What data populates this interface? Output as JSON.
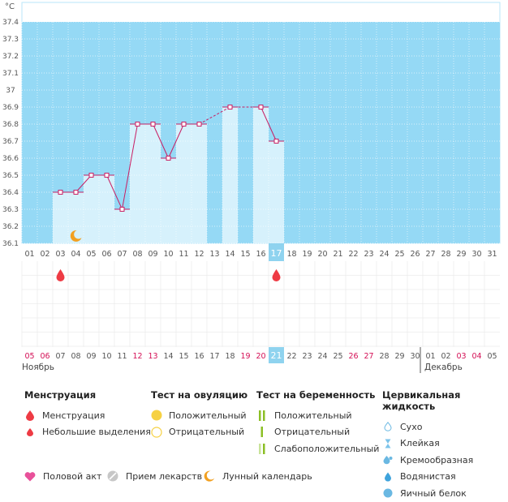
{
  "chart_data": {
    "type": "line",
    "ylabel": "°C",
    "ylim": [
      36.1,
      37.4
    ],
    "y_ticks": [
      "36.1",
      "36.2",
      "36.3",
      "36.4",
      "36.5",
      "36.6",
      "36.7",
      "36.8",
      "36.9",
      "37",
      "37.1",
      "37.2",
      "37.3",
      "37.4"
    ],
    "cycle_days": [
      "01",
      "02",
      "03",
      "04",
      "05",
      "06",
      "07",
      "08",
      "09",
      "10",
      "11",
      "12",
      "13",
      "14",
      "15",
      "16",
      "17",
      "18",
      "19",
      "20",
      "21",
      "22",
      "23",
      "24",
      "25",
      "26",
      "27",
      "28",
      "29",
      "30",
      "31"
    ],
    "highlight_day": "17",
    "bbt": [
      {
        "day": 3,
        "value": 36.4
      },
      {
        "day": 4,
        "value": 36.4
      },
      {
        "day": 5,
        "value": 36.5
      },
      {
        "day": 6,
        "value": 36.5
      },
      {
        "day": 7,
        "value": 36.3
      },
      {
        "day": 8,
        "value": 36.8
      },
      {
        "day": 9,
        "value": 36.8
      },
      {
        "day": 10,
        "value": 36.6
      },
      {
        "day": 11,
        "value": 36.8
      },
      {
        "day": 12,
        "value": 36.8
      },
      {
        "day": 14,
        "value": 36.9
      },
      {
        "day": 16,
        "value": 36.9
      },
      {
        "day": 17,
        "value": 36.7
      }
    ],
    "bbt_dashed_segments": [
      [
        12,
        14
      ],
      [
        14,
        16
      ]
    ],
    "moon_day": 4,
    "menstruation_days": [
      3,
      17
    ],
    "calendar_dates": [
      {
        "label": "05",
        "red": true
      },
      {
        "label": "06",
        "red": true
      },
      {
        "label": "07",
        "red": false
      },
      {
        "label": "08",
        "red": false
      },
      {
        "label": "09",
        "red": false
      },
      {
        "label": "10",
        "red": false
      },
      {
        "label": "11",
        "red": false
      },
      {
        "label": "12",
        "red": true
      },
      {
        "label": "13",
        "red": true
      },
      {
        "label": "14",
        "red": false
      },
      {
        "label": "15",
        "red": false
      },
      {
        "label": "16",
        "red": false
      },
      {
        "label": "17",
        "red": false
      },
      {
        "label": "18",
        "red": false
      },
      {
        "label": "19",
        "red": true
      },
      {
        "label": "20",
        "red": true
      },
      {
        "label": "21",
        "red": false,
        "highlight": true
      },
      {
        "label": "22",
        "red": false
      },
      {
        "label": "23",
        "red": false
      },
      {
        "label": "24",
        "red": false
      },
      {
        "label": "25",
        "red": false
      },
      {
        "label": "26",
        "red": true
      },
      {
        "label": "27",
        "red": true
      },
      {
        "label": "28",
        "red": false
      },
      {
        "label": "29",
        "red": false
      },
      {
        "label": "30",
        "red": false
      },
      {
        "label": "01",
        "red": false
      },
      {
        "label": "02",
        "red": false
      },
      {
        "label": "03",
        "red": true
      },
      {
        "label": "04",
        "red": true
      },
      {
        "label": "05",
        "red": false
      }
    ],
    "month_labels": [
      "Ноябрь",
      "Декабрь"
    ],
    "colors": {
      "plot_bg": "#95d9f5",
      "column": "#d6f1fc",
      "line": "#c81e63",
      "highlight": "#8fd3ef",
      "red_date": "#d40f55",
      "grid": "#ffffff",
      "lower_grid": "#ececec",
      "moon": "#f2a021",
      "drop": "#ee3b44"
    }
  },
  "legend": {
    "menstruation": {
      "title": "Менструация",
      "items": [
        "Менструация",
        "Небольшие выделения"
      ]
    },
    "ovulation_test": {
      "title": "Тест на овуляцию",
      "items": [
        "Положительный",
        "Отрицательный"
      ]
    },
    "pregnancy_test": {
      "title": "Тест на беременность",
      "items": [
        "Положительный",
        "Отрицательный",
        "Слабоположительный"
      ]
    },
    "cervical_fluid": {
      "title": "Цервикальная жидкость",
      "items": [
        "Сухо",
        "Клейкая",
        "Кремообразная",
        "Водянистая",
        "Яичный белок"
      ]
    },
    "bottom": [
      "Половой акт",
      "Прием лекарств",
      "Лунный календарь"
    ]
  }
}
